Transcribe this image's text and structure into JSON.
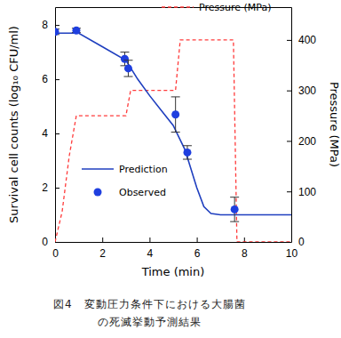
{
  "chart_data": {
    "type": "line",
    "x_label": "Time (min)",
    "y_label": "Survival cell counts (log₁₀ CFU/ml)",
    "y2_label": "Pressure (MPa)",
    "caption": [
      "図4　変動圧力条件下における大腸菌",
      "の死滅挙動予測結果"
    ],
    "xlim": [
      0,
      10
    ],
    "xticks": [
      0,
      2,
      4,
      6,
      8,
      10
    ],
    "ylim": [
      0,
      8.66
    ],
    "yticks": [
      0,
      2,
      4,
      6,
      8
    ],
    "y2lim": [
      0,
      465
    ],
    "y2ticks": [
      0,
      100,
      200,
      300,
      400
    ],
    "series": [
      {
        "name": "Pressure (MPa)",
        "type": "line",
        "axis": "y2",
        "color": "#ff3b3b",
        "line_style": "dashed",
        "x": [
          0,
          0.3,
          0.6,
          0.9,
          3.0,
          3.2,
          5.1,
          5.3,
          7.55,
          7.7,
          10
        ],
        "values": [
          0,
          60,
          170,
          250,
          250,
          300,
          300,
          400,
          400,
          0,
          0
        ]
      },
      {
        "name": "Prediction",
        "type": "line",
        "color": "#1f3fbf",
        "line_style": "solid",
        "x": [
          0,
          1,
          2,
          3,
          3.5,
          4,
          4.5,
          5,
          5.5,
          6,
          6.3,
          6.6,
          7,
          10
        ],
        "values": [
          7.7,
          7.7,
          7.2,
          6.7,
          6.0,
          5.4,
          4.85,
          4.3,
          3.4,
          2.0,
          1.3,
          1.05,
          1.0,
          1.0
        ]
      },
      {
        "name": "Observed",
        "type": "scatter",
        "color": "#1f3fdf",
        "marker": "circle",
        "x": [
          0,
          0.9,
          2.95,
          3.1,
          5.1,
          5.6,
          7.6
        ],
        "values": [
          7.75,
          7.8,
          6.75,
          6.4,
          4.7,
          3.3,
          1.2
        ],
        "errors": [
          0.1,
          0.08,
          0.25,
          0.3,
          0.65,
          0.25,
          0.45
        ]
      }
    ]
  }
}
